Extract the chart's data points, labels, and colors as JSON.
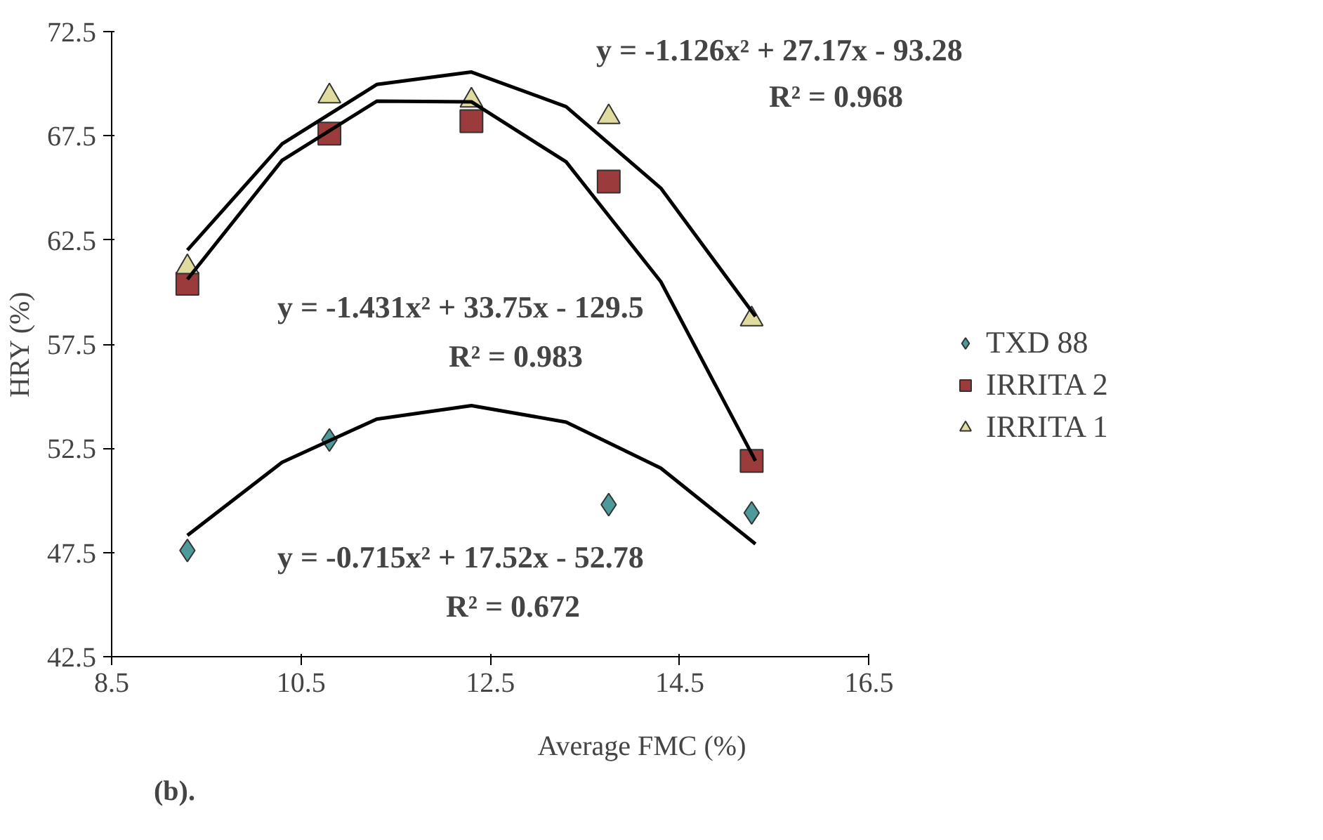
{
  "chart_data": {
    "type": "scatter",
    "xlabel": "Average FMC (%)",
    "ylabel": "HRY (%)",
    "xlim": [
      8.5,
      16.5
    ],
    "xticks": [
      8.5,
      10.5,
      12.5,
      14.5,
      16.5
    ],
    "ylim": [
      42.5,
      72.5
    ],
    "yticks": [
      42.5,
      47.5,
      52.5,
      57.5,
      62.5,
      67.5,
      72.5
    ],
    "grid": false,
    "legend": "right",
    "series": [
      {
        "name": "TXD 88",
        "color": "#4e9a9a",
        "marker": "diamond",
        "x": [
          9.3,
          10.8,
          12.3,
          13.75,
          15.26
        ],
        "values": [
          47.6,
          52.9,
          null,
          49.8,
          49.4
        ]
      },
      {
        "name": "IRRITA 2",
        "color": "#9b3b3b",
        "marker": "square",
        "x": [
          9.3,
          10.8,
          12.3,
          13.75,
          15.26
        ],
        "values": [
          60.4,
          67.6,
          68.2,
          65.3,
          51.9
        ]
      },
      {
        "name": "IRRITA 1",
        "color": "#e0dca0",
        "marker": "triangle",
        "x": [
          9.3,
          10.8,
          12.3,
          13.75,
          15.26
        ],
        "values": [
          61.2,
          69.4,
          69.2,
          68.4,
          58.7
        ]
      },
      {
        "type": "line",
        "color": "#000000",
        "x": [
          9.3,
          10.3,
          11.3,
          12.3,
          13.3,
          14.3,
          15.3
        ],
        "values": [
          48.32,
          51.83,
          53.9,
          54.55,
          53.76,
          51.55,
          47.91
        ]
      },
      {
        "type": "line",
        "color": "#000000",
        "x": [
          9.3,
          10.3,
          11.3,
          12.3,
          13.3,
          14.3,
          15.3
        ],
        "values": [
          60.61,
          66.32,
          69.16,
          69.13,
          66.25,
          60.5,
          51.9
        ]
      },
      {
        "type": "line",
        "color": "#000000",
        "x": [
          9.3,
          10.3,
          11.3,
          12.3,
          13.3,
          14.3,
          15.3
        ],
        "values": [
          62.01,
          67.11,
          69.96,
          70.56,
          68.9,
          64.99,
          58.83
        ]
      }
    ],
    "annotations": [
      "y = -1.126x² + 27.17x - 93.28",
      "R² = 0.968",
      "y = -1.431x² + 33.75x - 129.5",
      "R² = 0.983",
      "y = -0.715x² + 17.52x - 52.78",
      "R² = 0.672",
      "(b)."
    ]
  }
}
